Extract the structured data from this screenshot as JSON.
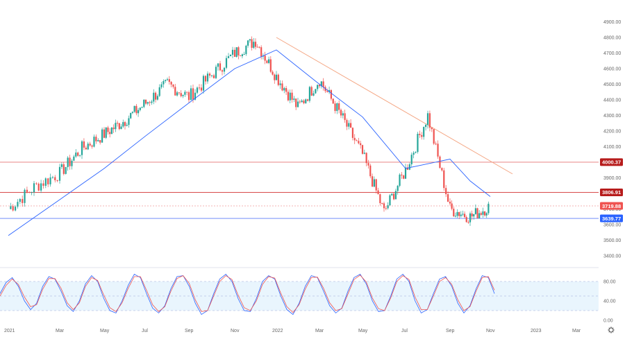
{
  "chart_data": [
    {
      "type": "candlestick",
      "name": "",
      "x_ticks": [
        "2021",
        "Mar",
        "May",
        "Jul",
        "Sep",
        "Nov",
        "2022",
        "Mar",
        "May",
        "Jul",
        "Sep",
        "Nov",
        "2023",
        "Mar"
      ],
      "y_ticks": [
        "4900.00",
        "4800.00",
        "4700.00",
        "4600.00",
        "4500.00",
        "4400.00",
        "4300.00",
        "4200.00",
        "4100.00",
        "4000.00",
        "3900.00",
        "3800.00",
        "3700.00",
        "3600.00",
        "3500.00",
        "3400.00"
      ],
      "ylim": [
        3360,
        4960
      ],
      "series": [
        {
          "name": "",
          "kind": "close",
          "color": "#26a69a",
          "down_color": "#ef5350",
          "x": [
            "2021-01",
            "2021-02",
            "2021-03",
            "2021-04",
            "2021-05",
            "2021-06",
            "2021-07",
            "2021-08",
            "2021-09",
            "2021-10",
            "2021-11",
            "2021-12",
            "2022-01",
            "2022-02",
            "2022-03",
            "2022-04",
            "2022-05",
            "2022-06",
            "2022-07",
            "2022-08",
            "2022-09",
            "2022-10",
            "2022-11"
          ],
          "values": [
            3700,
            3840,
            3930,
            4090,
            4180,
            4270,
            4380,
            4500,
            4420,
            4560,
            4700,
            4780,
            4550,
            4350,
            4530,
            4300,
            4050,
            3680,
            3950,
            4300,
            3700,
            3650,
            3719.88
          ]
        },
        {
          "name": "",
          "kind": "moving-average",
          "color": "#2962ff",
          "x": [
            "2021-01",
            "2021-03",
            "2021-05",
            "2021-07",
            "2021-09",
            "2021-11",
            "2022-01",
            "2022-03",
            "2022-05",
            "2022-07",
            "2022-09",
            "2022-10",
            "2022-11"
          ],
          "values": [
            3530,
            3760,
            3960,
            4170,
            4380,
            4600,
            4720,
            4500,
            4290,
            3960,
            4020,
            3880,
            3780
          ]
        },
        {
          "name": "",
          "kind": "trendline",
          "color": "#f4a582",
          "x": [
            "2021-12-31",
            "2022-12-01"
          ],
          "values": [
            4800,
            3925
          ]
        }
      ],
      "levels": [
        {
          "value": 4000.37,
          "label": "4000.37",
          "color": "#b71c1c",
          "line": "#e57373"
        },
        {
          "value": 3806.91,
          "label": "3806.91",
          "color": "#b71c1c",
          "line": "#d32f2f"
        },
        {
          "value": 3719.88,
          "label": "3719.88",
          "color": "#ef5350",
          "line": "#ef9a9a"
        },
        {
          "value": 3639.77,
          "label": "3639.77",
          "color": "#2962ff",
          "line": "#5c7cfa"
        }
      ]
    },
    {
      "type": "line",
      "name": "",
      "y_ticks": [
        "80.00",
        "40.00",
        "0.00"
      ],
      "ylim": [
        0,
        100
      ],
      "band": [
        20,
        80
      ],
      "series": [
        {
          "name": "",
          "color": "#2962ff",
          "values": [
            55,
            78,
            88,
            70,
            40,
            22,
            35,
            70,
            90,
            85,
            60,
            30,
            18,
            40,
            75,
            92,
            80,
            45,
            20,
            15,
            40,
            72,
            95,
            88,
            55,
            25,
            15,
            30,
            65,
            90,
            92,
            70,
            35,
            12,
            20,
            55,
            85,
            95,
            80,
            45,
            20,
            18,
            45,
            80,
            92,
            85,
            50,
            22,
            12,
            35,
            70,
            92,
            88,
            60,
            30,
            15,
            25,
            60,
            88,
            95,
            75,
            40,
            18,
            20,
            50,
            85,
            95,
            80,
            40,
            15,
            22,
            55,
            85,
            90,
            70,
            35,
            15,
            30,
            65,
            92,
            88,
            55
          ]
        },
        {
          "name": "",
          "color": "#ef5350",
          "values": [
            50,
            72,
            85,
            74,
            48,
            28,
            32,
            64,
            86,
            86,
            66,
            36,
            22,
            36,
            70,
            88,
            82,
            52,
            26,
            18,
            36,
            66,
            90,
            90,
            62,
            32,
            18,
            28,
            60,
            86,
            92,
            76,
            42,
            18,
            20,
            50,
            80,
            92,
            84,
            52,
            26,
            20,
            40,
            74,
            90,
            87,
            56,
            28,
            16,
            32,
            64,
            88,
            89,
            66,
            36,
            20,
            24,
            54,
            84,
            93,
            79,
            46,
            24,
            20,
            46,
            80,
            92,
            84,
            48,
            22,
            22,
            50,
            80,
            88,
            74,
            42,
            20,
            28,
            60,
            88,
            90,
            62
          ]
        }
      ]
    }
  ]
}
